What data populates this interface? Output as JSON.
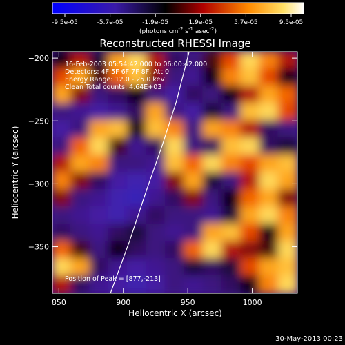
{
  "chart_data": {
    "type": "heatmap",
    "title": "Reconstructed RHESSI Image",
    "xlabel": "Heliocentric X (arcsec)",
    "ylabel": "Heliocentric Y (arcsec)",
    "xlim": [
      845,
      1035
    ],
    "ylim": [
      -387,
      -195
    ],
    "x_ticks": [
      850,
      900,
      950,
      1000
    ],
    "y_ticks": [
      -200,
      -250,
      -300,
      -350
    ],
    "colorbar": {
      "min": -9.5e-05,
      "max": 9.5e-05,
      "tick_labels": [
        "-9.5e-05",
        "-5.7e-05",
        "-1.9e-05",
        "1.9e-05",
        "5.7e-05",
        "9.5e-05"
      ],
      "units_label_parts": {
        "base": "(photons cm",
        "sup1": "-2",
        "mid1": " s",
        "sup2": "-1",
        "mid2": " asec",
        "sup3": "-2",
        "end": ")"
      }
    },
    "annotations": [
      "16-Feb-2003 05:54:42.000 to 06:00:42.000",
      "Detectors: 4F 5F 6F 7F 8F, Att 0",
      "Energy Range: 12.0 - 25.0 keV",
      "Clean     Total counts: 4.64E+03"
    ],
    "peak_label": "Position of Peak = [877,-213]",
    "peak_position": [
      877,
      -213
    ],
    "limb_curve": [
      [
        890,
        -387
      ],
      [
        905,
        -345
      ],
      [
        918,
        -305
      ],
      [
        930,
        -270
      ],
      [
        941,
        -235
      ],
      [
        951,
        -195
      ]
    ],
    "intensity_grid": [
      [
        0.45,
        0.6,
        0.4,
        0.85,
        0.95,
        0.6,
        0.35,
        0.3,
        0.5,
        0.7,
        0.95,
        0.8,
        0.6
      ],
      [
        0.7,
        0.85,
        0.5,
        0.75,
        0.9,
        0.55,
        0.3,
        0.25,
        0.45,
        0.8,
        0.9,
        0.7,
        0.45
      ],
      [
        0.85,
        0.55,
        0.3,
        0.35,
        0.45,
        0.3,
        0.2,
        0.35,
        0.3,
        0.45,
        0.6,
        0.85,
        0.75
      ],
      [
        0.3,
        0.25,
        0.2,
        0.25,
        0.35,
        0.85,
        0.3,
        0.2,
        0.4,
        0.3,
        0.9,
        0.95,
        0.7
      ],
      [
        0.2,
        0.3,
        0.85,
        0.9,
        0.45,
        0.9,
        0.8,
        0.3,
        0.85,
        0.8,
        0.6,
        0.35,
        0.3
      ],
      [
        0.3,
        0.75,
        0.95,
        0.5,
        0.25,
        0.35,
        0.95,
        0.3,
        0.35,
        0.9,
        0.95,
        0.35,
        0.4
      ],
      [
        0.6,
        0.85,
        0.8,
        0.3,
        0.3,
        0.25,
        0.9,
        0.75,
        0.95,
        0.8,
        0.7,
        0.85,
        0.9
      ],
      [
        0.8,
        0.55,
        0.35,
        0.2,
        0.15,
        0.2,
        0.55,
        0.85,
        0.4,
        0.3,
        0.6,
        0.95,
        0.85
      ],
      [
        0.55,
        0.3,
        0.25,
        0.15,
        0.1,
        0.25,
        0.35,
        0.55,
        0.3,
        0.45,
        0.75,
        0.85,
        0.55
      ],
      [
        0.3,
        0.25,
        0.2,
        0.15,
        0.25,
        0.35,
        0.3,
        0.3,
        0.25,
        0.4,
        0.85,
        0.95,
        0.8
      ],
      [
        0.35,
        0.3,
        0.25,
        0.35,
        0.4,
        0.3,
        0.25,
        0.3,
        0.85,
        0.9,
        0.7,
        0.45,
        0.85
      ],
      [
        0.75,
        0.5,
        0.3,
        0.45,
        0.35,
        0.3,
        0.35,
        0.75,
        0.95,
        0.6,
        0.55,
        0.5,
        0.95
      ],
      [
        0.95,
        0.85,
        0.35,
        0.25,
        0.2,
        0.25,
        0.3,
        0.4,
        0.35,
        0.4,
        0.7,
        0.85,
        0.9
      ],
      [
        0.6,
        0.35,
        0.25,
        0.2,
        0.15,
        0.2,
        0.3,
        0.25,
        0.3,
        0.35,
        0.45,
        0.8,
        0.95
      ]
    ]
  },
  "footer": {
    "date": "30-May-2013 00:23"
  }
}
